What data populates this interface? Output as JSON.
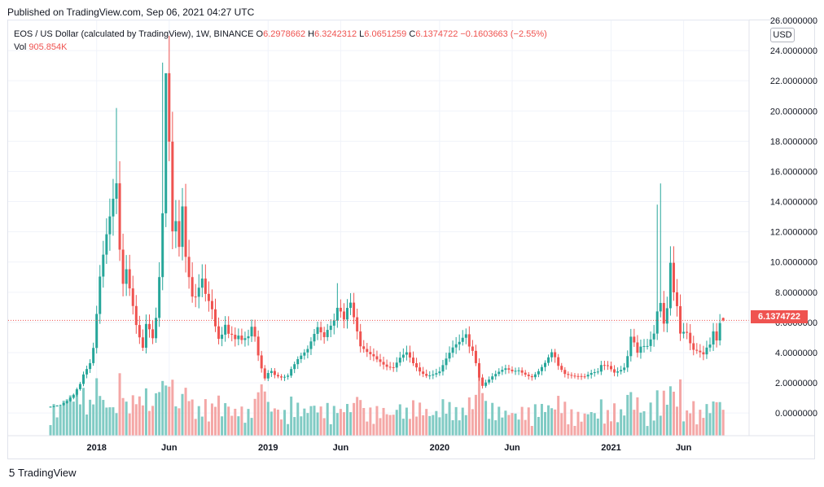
{
  "header": {
    "published": "Published on TradingView.com, Sep 06, 2021 04:27 UTC"
  },
  "legend": {
    "symbol": "EOS / US Dollar (calculated by TradingView), 1W, BINANCE",
    "o_label": "O",
    "o_value": "6.2978662",
    "h_label": "H",
    "h_value": "6.3242312",
    "l_label": "L",
    "l_value": "6.0651259",
    "c_label": "C",
    "c_value": "6.1374722",
    "change": "−0.1603663 (−2.55%)",
    "vol_label": "Vol",
    "vol_value": "905.854K"
  },
  "axis": {
    "currency": "USD",
    "last_price": "6.1374722"
  },
  "footer": {
    "brand": "TradingView"
  },
  "colors": {
    "up": "#26a69a",
    "down": "#ef5350",
    "vol_up": "#80cbc4",
    "vol_down": "#f4a7a6",
    "grid": "#f0f3fa"
  },
  "chart_data": {
    "type": "candlestick",
    "y_ticks": [
      "0.0000000",
      "2.0000000",
      "4.0000000",
      "6.0000000",
      "8.0000000",
      "10.0000000",
      "12.0000000",
      "14.0000000",
      "16.0000000",
      "18.0000000",
      "20.0000000",
      "22.0000000",
      "24.0000000",
      "26.0000000"
    ],
    "ylim": [
      -1.5,
      26.0
    ],
    "x_ticks": [
      {
        "label": "2018",
        "index": 14
      },
      {
        "label": "Jun",
        "index": 36
      },
      {
        "label": "2019",
        "index": 66
      },
      {
        "label": "Jun",
        "index": 88
      },
      {
        "label": "2020",
        "index": 118
      },
      {
        "label": "Jun",
        "index": 140
      },
      {
        "label": "2021",
        "index": 170
      },
      {
        "label": "Jun",
        "index": 192
      }
    ],
    "bar_count": 205,
    "anchors": [
      [
        0,
        0.42
      ],
      [
        3,
        0.5
      ],
      [
        5,
        0.75
      ],
      [
        7,
        1.2
      ],
      [
        9,
        2.0
      ],
      [
        10,
        2.7
      ],
      [
        12,
        3.5
      ],
      [
        13,
        4.5
      ],
      [
        14,
        6.7
      ],
      [
        15,
        9.0
      ],
      [
        16,
        10.2
      ],
      [
        17,
        11.3
      ],
      [
        18,
        12.3
      ],
      [
        20,
        14.5
      ],
      [
        21,
        10.5
      ],
      [
        22,
        8.5
      ],
      [
        23,
        9.7
      ],
      [
        25,
        7.5
      ],
      [
        26,
        6.2
      ],
      [
        27,
        5.3
      ],
      [
        28,
        4.5
      ],
      [
        29,
        6.0
      ],
      [
        30,
        5.5
      ],
      [
        31,
        4.8
      ],
      [
        32,
        6.0
      ],
      [
        33,
        8.5
      ],
      [
        34,
        12.5
      ],
      [
        35,
        21.5
      ],
      [
        36,
        17.5
      ],
      [
        37,
        12.0
      ],
      [
        38,
        13.0
      ],
      [
        39,
        11.5
      ],
      [
        40,
        14.5
      ],
      [
        41,
        11.0
      ],
      [
        42,
        9.5
      ],
      [
        43,
        8.0
      ],
      [
        44,
        7.8
      ],
      [
        45,
        8.2
      ],
      [
        46,
        8.6
      ],
      [
        47,
        7.5
      ],
      [
        48,
        7.0
      ],
      [
        49,
        6.5
      ],
      [
        50,
        5.5
      ],
      [
        51,
        4.8
      ],
      [
        52,
        5.2
      ],
      [
        53,
        6.0
      ],
      [
        54,
        5.5
      ],
      [
        55,
        5.5
      ],
      [
        56,
        5.2
      ],
      [
        57,
        5.4
      ],
      [
        58,
        5.0
      ],
      [
        60,
        5.0
      ],
      [
        61,
        5.5
      ],
      [
        62,
        4.8
      ],
      [
        63,
        3.6
      ],
      [
        64,
        2.8
      ],
      [
        65,
        2.2
      ],
      [
        66,
        2.6
      ],
      [
        67,
        2.8
      ],
      [
        68,
        2.6
      ],
      [
        70,
        2.5
      ],
      [
        72,
        2.6
      ],
      [
        73,
        3.0
      ],
      [
        75,
        3.5
      ],
      [
        77,
        3.8
      ],
      [
        78,
        4.0
      ],
      [
        79,
        4.5
      ],
      [
        81,
        5.6
      ],
      [
        83,
        5.2
      ],
      [
        84,
        5.8
      ],
      [
        86,
        6.5
      ],
      [
        87,
        7.3
      ],
      [
        88,
        6.9
      ],
      [
        89,
        6.2
      ],
      [
        90,
        6.8
      ],
      [
        91,
        7.0
      ],
      [
        92,
        6.0
      ],
      [
        93,
        5.1
      ],
      [
        94,
        4.2
      ],
      [
        96,
        4.0
      ],
      [
        98,
        3.9
      ],
      [
        100,
        3.6
      ],
      [
        102,
        3.2
      ],
      [
        104,
        3.0
      ],
      [
        106,
        3.5
      ],
      [
        108,
        3.8
      ],
      [
        110,
        3.2
      ],
      [
        112,
        2.8
      ],
      [
        114,
        2.6
      ],
      [
        116,
        2.7
      ],
      [
        118,
        2.8
      ],
      [
        120,
        3.5
      ],
      [
        122,
        4.1
      ],
      [
        124,
        4.5
      ],
      [
        126,
        5.2
      ],
      [
        127,
        4.5
      ],
      [
        128,
        4.3
      ],
      [
        129,
        3.5
      ],
      [
        130,
        2.5
      ],
      [
        131,
        1.9
      ],
      [
        132,
        2.1
      ],
      [
        134,
        2.4
      ],
      [
        136,
        2.6
      ],
      [
        138,
        2.8
      ],
      [
        140,
        2.7
      ],
      [
        142,
        2.9
      ],
      [
        144,
        2.7
      ],
      [
        146,
        2.5
      ],
      [
        148,
        2.8
      ],
      [
        150,
        3.2
      ],
      [
        152,
        3.8
      ],
      [
        153,
        3.5
      ],
      [
        154,
        3.0
      ],
      [
        156,
        2.6
      ],
      [
        158,
        2.6
      ],
      [
        160,
        2.6
      ],
      [
        162,
        2.5
      ],
      [
        164,
        2.6
      ],
      [
        166,
        2.6
      ],
      [
        167,
        3.0
      ],
      [
        169,
        3.0
      ],
      [
        171,
        2.7
      ],
      [
        173,
        3.0
      ],
      [
        174,
        3.2
      ],
      [
        175,
        4.0
      ],
      [
        176,
        5.3
      ],
      [
        177,
        4.8
      ],
      [
        178,
        4.0
      ],
      [
        179,
        4.3
      ],
      [
        181,
        4.2
      ],
      [
        183,
        5.0
      ],
      [
        184,
        6.5
      ],
      [
        185,
        7.2
      ],
      [
        186,
        6.0
      ],
      [
        187,
        7.2
      ],
      [
        188,
        10.5
      ],
      [
        189,
        8.5
      ],
      [
        190,
        7.5
      ],
      [
        191,
        5.5
      ],
      [
        192,
        5.5
      ],
      [
        193,
        5.3
      ],
      [
        194,
        4.5
      ],
      [
        195,
        4.0
      ],
      [
        196,
        3.9
      ],
      [
        197,
        3.8
      ],
      [
        198,
        3.7
      ],
      [
        199,
        4.2
      ],
      [
        200,
        4.5
      ],
      [
        201,
        5.5
      ],
      [
        202,
        5.0
      ],
      [
        203,
        6.3
      ],
      [
        204,
        6.14
      ]
    ],
    "wick_highs": [
      [
        34,
        23.2
      ],
      [
        35,
        22.0
      ],
      [
        20,
        20.2
      ],
      [
        40,
        14.9
      ],
      [
        185,
        15.2
      ],
      [
        184,
        13.8
      ],
      [
        87,
        8.6
      ],
      [
        126,
        5.6
      ]
    ],
    "last": {
      "open": 6.2978662,
      "high": 6.3242312,
      "low": 6.0651259,
      "close": 6.1374722
    }
  }
}
